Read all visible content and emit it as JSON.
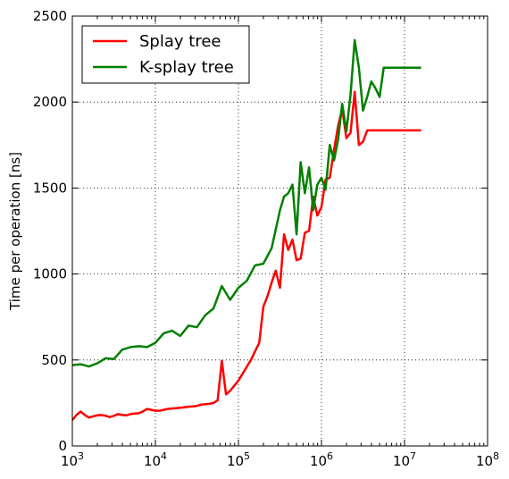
{
  "chart_data": {
    "type": "line",
    "xscale": "log",
    "xlim": [
      1000,
      100000000
    ],
    "ylim": [
      0,
      2500
    ],
    "xlabel": "",
    "ylabel": "Time per operation [ns]",
    "xticks": [
      {
        "value": 1000,
        "base": "10",
        "exp": "3"
      },
      {
        "value": 10000,
        "base": "10",
        "exp": "4"
      },
      {
        "value": 100000,
        "base": "10",
        "exp": "5"
      },
      {
        "value": 1000000,
        "base": "10",
        "exp": "6"
      },
      {
        "value": 10000000,
        "base": "10",
        "exp": "7"
      },
      {
        "value": 100000000,
        "base": "10",
        "exp": "8"
      }
    ],
    "yticks": [
      {
        "value": 0,
        "label": "0"
      },
      {
        "value": 500,
        "label": "500"
      },
      {
        "value": 1000,
        "label": "1000"
      },
      {
        "value": 1500,
        "label": "1500"
      },
      {
        "value": 2000,
        "label": "2000"
      },
      {
        "value": 2500,
        "label": "2500"
      }
    ],
    "grid": true,
    "legend_position": "top-left",
    "series": [
      {
        "name": "Splay tree",
        "color": "#ff0000",
        "x": [
          1000,
          1122,
          1259,
          1413,
          1585,
          1778,
          1995,
          2239,
          2512,
          2818,
          3162,
          3548,
          3981,
          4467,
          5012,
          5623,
          6310,
          7079,
          7943,
          8913,
          10000,
          11220,
          12589,
          14125,
          15849,
          17783,
          19953,
          22387,
          25119,
          28184,
          31623,
          35481,
          39811,
          44668,
          50119,
          56234,
          63096,
          70795,
          79433,
          89125,
          100000,
          112202,
          125893,
          141254,
          158489,
          177828,
          199526,
          223872,
          251189,
          281838,
          316228,
          354813,
          398107,
          446684,
          501187,
          562341,
          630957,
          707946,
          794328,
          891251,
          1000000,
          1122018,
          1258925,
          1412538,
          1584893,
          1778279,
          1995262,
          2238721,
          2511886,
          2818383,
          3162278,
          3548134,
          3981072,
          4466836,
          5011872,
          5623413,
          6309573,
          7079458,
          7943282,
          8912509,
          10000000,
          11220185,
          12589254,
          14125375,
          15848932
        ],
        "y": [
          150,
          180,
          200,
          180,
          165,
          172,
          178,
          180,
          175,
          168,
          175,
          185,
          180,
          178,
          185,
          188,
          190,
          200,
          215,
          210,
          205,
          205,
          210,
          215,
          218,
          220,
          222,
          225,
          228,
          230,
          233,
          240,
          242,
          245,
          250,
          265,
          495,
          300,
          320,
          350,
          380,
          420,
          460,
          500,
          550,
          600,
          810,
          870,
          950,
          1020,
          920,
          1230,
          1140,
          1200,
          1080,
          1090,
          1240,
          1250,
          1450,
          1340,
          1390,
          1550,
          1560,
          1720,
          1860,
          1960,
          1790,
          1820,
          2060,
          1750,
          1770,
          1835,
          1835,
          1835,
          1835,
          1835,
          1835,
          1835,
          1835,
          1835,
          1835,
          1835,
          1835,
          1835,
          1835
        ]
      },
      {
        "name": "K-splay tree",
        "color": "#008000",
        "x": [
          1000,
          1259,
          1585,
          1995,
          2512,
          3162,
          3981,
          5012,
          6310,
          7943,
          10000,
          12589,
          15849,
          19953,
          25119,
          31623,
          39811,
          50119,
          63096,
          79433,
          100000,
          125893,
          158489,
          199526,
          251189,
          316228,
          354813,
          398107,
          446684,
          501187,
          562341,
          630957,
          707946,
          794328,
          891251,
          1000000,
          1122018,
          1258925,
          1412538,
          1584893,
          1778279,
          1995262,
          2238721,
          2511886,
          2818383,
          3162278,
          3548134,
          3981072,
          4466836,
          5011872,
          5623413,
          6309573,
          7079458,
          7943282,
          8912509,
          10000000,
          11220185,
          12589254,
          14125375,
          15848932
        ],
        "y": [
          470,
          475,
          462,
          480,
          510,
          505,
          560,
          575,
          580,
          575,
          600,
          655,
          670,
          640,
          700,
          690,
          760,
          800,
          930,
          850,
          920,
          960,
          1050,
          1060,
          1150,
          1370,
          1450,
          1470,
          1520,
          1230,
          1650,
          1470,
          1620,
          1370,
          1520,
          1560,
          1490,
          1750,
          1660,
          1780,
          1990,
          1830,
          2040,
          2360,
          2200,
          1950,
          2030,
          2120,
          2080,
          2030,
          2200,
          2200,
          2200,
          2200,
          2200,
          2200,
          2200,
          2200,
          2200,
          2200
        ]
      }
    ]
  }
}
